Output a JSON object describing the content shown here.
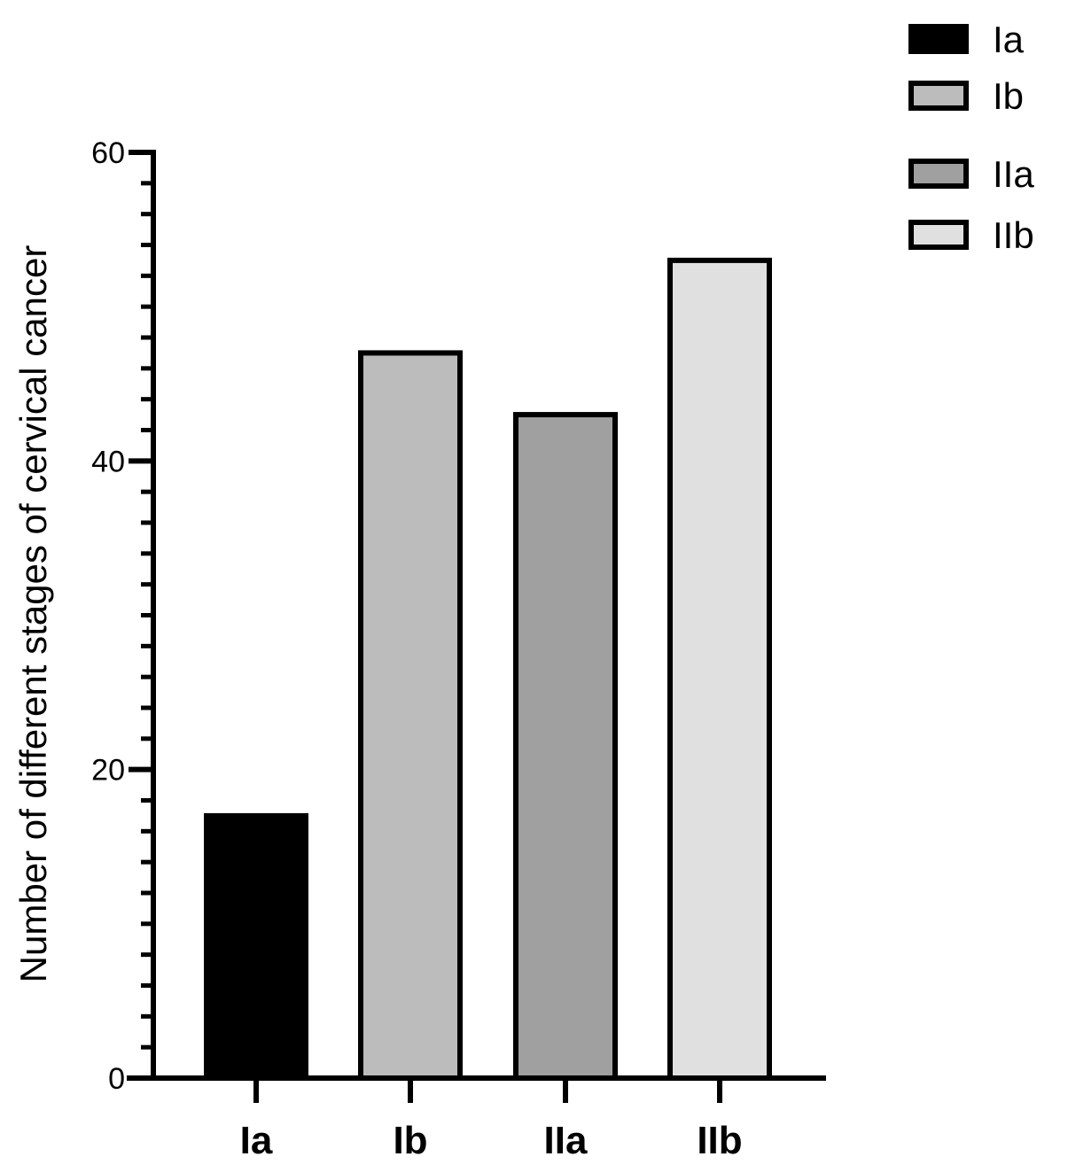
{
  "chart_data": {
    "type": "bar",
    "title": "",
    "xlabel": "",
    "ylabel": "Number of different stages of cervical cancer",
    "categories": [
      "Ia",
      "Ib",
      "IIa",
      "IIb"
    ],
    "values": [
      17,
      47,
      43,
      53
    ],
    "colors": [
      "#000000",
      "#bcbcbc",
      "#a0a0a0",
      "#e0e0e0"
    ],
    "ylim": [
      0,
      60
    ],
    "yticks": [
      0,
      20,
      40,
      60
    ],
    "grid": false,
    "legend": {
      "position": "top-right",
      "entries": [
        "Ia",
        "Ib",
        "IIa",
        "IIb"
      ]
    }
  }
}
